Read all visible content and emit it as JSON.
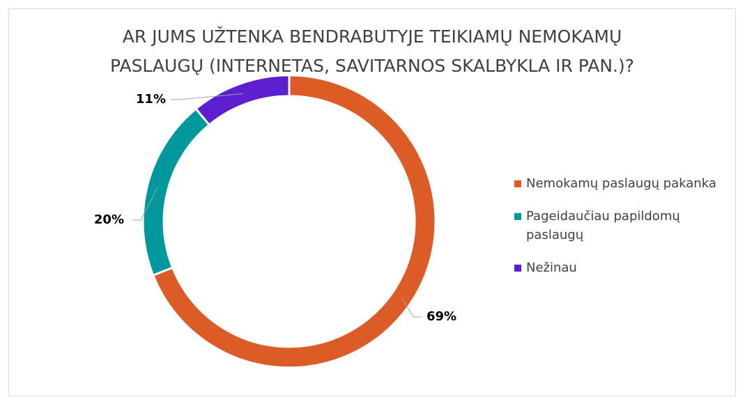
{
  "chart_data": {
    "type": "donut",
    "title": "AR JUMS UŽTENKA BENDRABUTYJE TEIKIAMŲ NEMOKAMŲ PASLAUGŲ (INTERNETAS, SAVITARNOS SKALBYKLA IR PAN.)?",
    "categories": [
      "Nemokamų paslaugų pakanka",
      "Pageidaučiau papildomų paslaugų",
      "Nežinau"
    ],
    "values": [
      69,
      20,
      11
    ],
    "value_labels": [
      "69%",
      "20%",
      "11%"
    ],
    "colors": [
      "#dd5b26",
      "#00979d",
      "#5b1fd0"
    ],
    "legend": "right"
  }
}
